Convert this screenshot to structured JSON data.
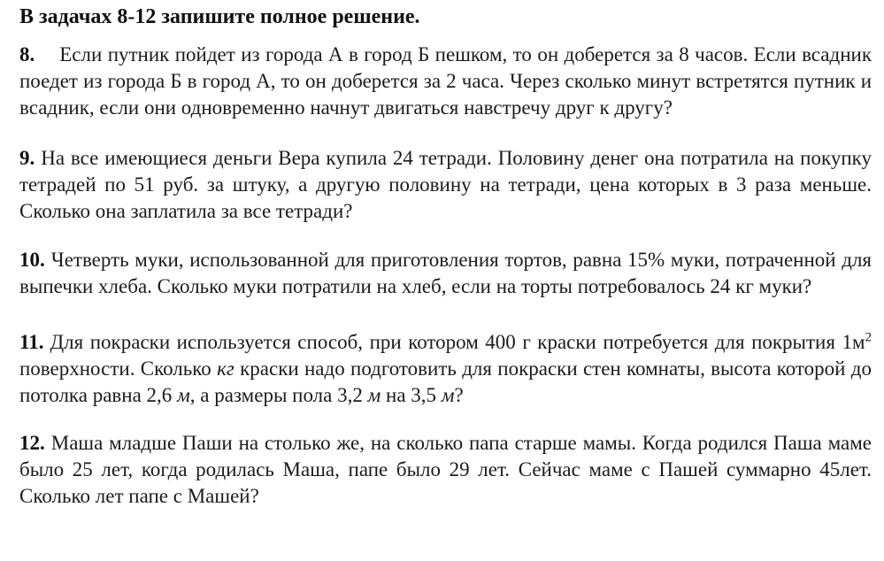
{
  "colors": {
    "background": "#ffffff",
    "text": "#1b1b1b"
  },
  "document": {
    "heading": "В задачах 8-12 запишите полное решение.",
    "problems": [
      {
        "id": "8",
        "number": "8.",
        "segments": [
          {
            "t": "Если путник пойдет из города А в город Б пешком, то он доберется за 8 часов. Если всадник поедет из города Б в город А, то он доберется за 2 часа. Через сколько минут встретятся путник и всадник, если они одновременно начнут двигаться навстречу друг к другу?"
          }
        ]
      },
      {
        "id": "9",
        "number": "9.",
        "segments": [
          {
            "t": "На все имеющиеся деньги Вера купила 24 тетради. Половину денег она потратила на покупку тетрадей по 51 руб. за штуку, а другую половину на тетради, цена которых в 3 раза меньше. Сколько она заплатила за все тетради?"
          }
        ]
      },
      {
        "id": "10",
        "number": "10.",
        "segments": [
          {
            "t": "Четверть муки, использованной для приготовления тортов, равна 15% муки, потраченной для выпечки хлеба. Сколько муки потратили на хлеб, если на торты потребовалось 24 кг муки?"
          }
        ]
      },
      {
        "id": "11",
        "number": "11.",
        "segments": [
          {
            "t": "Для покраски используется способ, при котором 400 г краски потребуется для покрытия 1м"
          },
          {
            "t": "2",
            "style": "sup"
          },
          {
            "t": " поверхности. Сколько "
          },
          {
            "t": "кг",
            "style": "italic"
          },
          {
            "t": " краски надо подготовить для покраски стен комнаты, высота которой до потолка равна 2,6 "
          },
          {
            "t": "м",
            "style": "italic"
          },
          {
            "t": ", а размеры пола 3,2 "
          },
          {
            "t": "м",
            "style": "italic"
          },
          {
            "t": " на 3,5 "
          },
          {
            "t": "м",
            "style": "italic"
          },
          {
            "t": "?"
          }
        ]
      },
      {
        "id": "12",
        "number": "12.",
        "segments": [
          {
            "t": "Маша младше Паши на столько же, на сколько папа старше мамы. Когда родился Паша маме было 25 лет, когда родилась Маша, папе было 29 лет. Сейчас маме с Пашей суммарно 45лет. Сколько лет папе с Машей?"
          }
        ]
      }
    ]
  }
}
